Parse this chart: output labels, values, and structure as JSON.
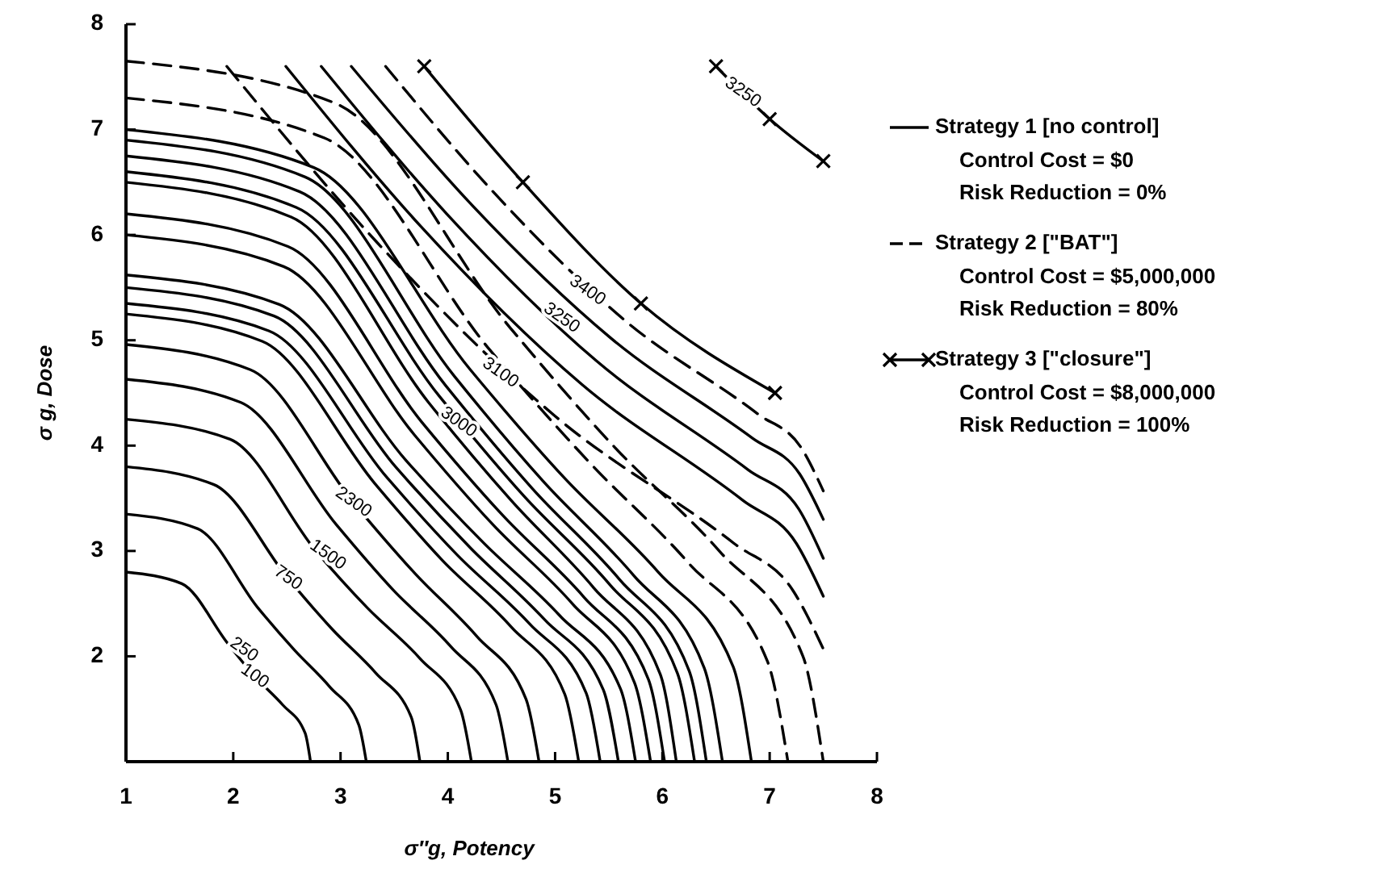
{
  "chart_data": {
    "type": "line",
    "xlabel": "σ″g,  Potency",
    "ylabel": "σ g,  Dose",
    "xlim": [
      1,
      8
    ],
    "ylim": [
      1,
      8
    ],
    "xticks": [
      1,
      2,
      3,
      4,
      5,
      6,
      7,
      8
    ],
    "yticks": [
      2,
      3,
      4,
      5,
      6,
      7,
      8
    ],
    "grid": false,
    "legend": "right",
    "series": [
      {
        "name": "Strategy 1 [no control]",
        "color": "#000000",
        "line_style": "solid",
        "x": [
          1,
          1.52,
          1.95,
          2.2,
          2.46,
          2.67,
          2.72
        ],
        "values": [
          2.8,
          2.69,
          2.12,
          1.81,
          1.54,
          1.27,
          1.0
        ]
      },
      {
        "color": "#000000",
        "line_style": "solid",
        "x": [
          1,
          1.67,
          2.23,
          2.57,
          2.9,
          3.17,
          3.24
        ],
        "values": [
          3.35,
          3.21,
          2.46,
          2.06,
          1.71,
          1.35,
          1.0
        ]
      },
      {
        "color": "#000000",
        "line_style": "solid",
        "x": [
          1,
          1.82,
          2.51,
          2.92,
          3.33,
          3.66,
          3.74
        ],
        "values": [
          3.8,
          3.63,
          2.74,
          2.26,
          1.84,
          1.42,
          1.0
        ]
      },
      {
        "color": "#000000",
        "line_style": "solid",
        "x": [
          1,
          1.97,
          2.77,
          3.25,
          3.74,
          4.12,
          4.22
        ],
        "values": [
          4.25,
          4.06,
          3.0,
          2.46,
          1.98,
          1.49,
          1.0
        ]
      },
      {
        "color": "#000000",
        "line_style": "solid",
        "x": [
          1,
          2.07,
          2.96,
          3.49,
          4.03,
          4.45,
          4.56
        ],
        "values": [
          4.63,
          4.41,
          3.25,
          2.63,
          2.09,
          1.54,
          1.0
        ]
      },
      {
        "color": "#000000",
        "line_style": "solid",
        "x": [
          1,
          2.16,
          3.12,
          3.7,
          4.27,
          4.73,
          4.85
        ],
        "values": [
          4.96,
          4.72,
          3.46,
          2.78,
          2.19,
          1.59,
          1.0
        ]
      },
      {
        "color": "#000000",
        "line_style": "solid",
        "x": [
          1,
          2.27,
          3.32,
          3.95,
          4.59,
          5.09,
          5.22
        ],
        "values": [
          5.25,
          4.99,
          3.64,
          2.91,
          2.28,
          1.64,
          1.0
        ]
      },
      {
        "color": "#000000",
        "line_style": "solid",
        "x": [
          1,
          2.33,
          3.43,
          4.09,
          4.76,
          5.29,
          5.42
        ],
        "values": [
          5.35,
          5.09,
          3.7,
          2.96,
          2.31,
          1.65,
          1.0
        ]
      },
      {
        "color": "#000000",
        "line_style": "solid",
        "x": [
          1,
          2.38,
          3.52,
          4.21,
          4.9,
          5.45,
          5.59
        ],
        "values": [
          5.5,
          5.23,
          3.79,
          3.03,
          2.35,
          1.68,
          1.0
        ]
      },
      {
        "color": "#000000",
        "line_style": "solid",
        "x": [
          1,
          2.43,
          3.61,
          4.33,
          5.04,
          5.61,
          5.75
        ],
        "values": [
          5.62,
          5.34,
          3.86,
          3.08,
          2.39,
          1.69,
          1.0
        ]
      },
      {
        "color": "#000000",
        "line_style": "solid",
        "x": [
          1,
          2.47,
          3.69,
          4.42,
          5.16,
          5.74,
          5.89
        ],
        "values": [
          6.0,
          5.7,
          4.1,
          3.25,
          2.5,
          1.75,
          1.0
        ]
      },
      {
        "color": "#000000",
        "line_style": "solid",
        "x": [
          1,
          2.51,
          3.76,
          4.51,
          5.27,
          5.87,
          6.02
        ],
        "values": [
          6.2,
          5.89,
          4.22,
          3.34,
          2.56,
          1.78,
          1.0
        ]
      },
      {
        "color": "#000000",
        "line_style": "solid",
        "x": [
          1,
          2.54,
          3.82,
          4.59,
          5.36,
          5.98,
          6.13
        ],
        "values": [
          6.5,
          6.17,
          4.41,
          3.48,
          2.65,
          1.83,
          1.0
        ]
      },
      {
        "color": "#000000",
        "line_style": "solid",
        "x": [
          1,
          2.59,
          3.92,
          4.71,
          5.51,
          6.14,
          6.3
        ],
        "values": [
          6.6,
          6.26,
          4.47,
          3.52,
          2.68,
          1.84,
          1.0
        ]
      },
      {
        "color": "#000000",
        "line_style": "solid",
        "x": [
          1,
          2.62,
          3.98,
          4.79,
          5.6,
          6.25,
          6.41
        ],
        "values": [
          6.75,
          6.41,
          4.57,
          3.59,
          2.73,
          1.86,
          1.0
        ]
      },
      {
        "color": "#000000",
        "line_style": "solid",
        "x": [
          1,
          2.67,
          4.06,
          4.89,
          5.73,
          6.39,
          6.56
        ],
        "values": [
          6.9,
          6.55,
          4.66,
          3.66,
          2.77,
          1.89,
          1.0
        ]
      },
      {
        "color": "#000000",
        "line_style": "solid",
        "x": [
          1,
          2.75,
          4.21,
          5.08,
          5.96,
          6.66,
          6.83
        ],
        "values": [
          7.0,
          6.64,
          4.72,
          3.7,
          2.8,
          1.9,
          1.0
        ]
      },
      {
        "name": "Strategy 2 [\"BAT\"]",
        "color": "#000000",
        "line_style": "dashed",
        "x": [
          1,
          2.85,
          4.39,
          5.32,
          6.24,
          6.98,
          7.17
        ],
        "values": [
          7.3,
          6.92,
          4.91,
          3.84,
          2.89,
          1.95,
          1.0
        ]
      },
      {
        "color": "#000000",
        "line_style": "dashed",
        "x": [
          1,
          2.95,
          4.58,
          5.55,
          6.53,
          7.31,
          7.5
        ],
        "values": [
          7.65,
          7.25,
          5.12,
          3.99,
          3.0,
          2.0,
          1.0
        ]
      },
      {
        "color": "#000000",
        "line_style": "dashed",
        "x": [
          1.94,
          3.33,
          5.0,
          6.67,
          7.22,
          7.5
        ],
        "values": [
          7.6,
          5.94,
          4.28,
          3.07,
          2.62,
          2.07
        ]
      },
      {
        "color": "#000000",
        "line_style": "solid",
        "x": [
          2.49,
          3.74,
          5.25,
          6.75,
          7.25,
          7.5
        ],
        "values": [
          7.6,
          6.09,
          4.58,
          3.48,
          3.07,
          2.57
        ]
      },
      {
        "color": "#000000",
        "line_style": "solid",
        "x": [
          2.82,
          3.99,
          5.39,
          6.8,
          7.27,
          7.5
        ],
        "values": [
          7.6,
          6.2,
          4.8,
          3.77,
          3.4,
          2.93
        ]
      },
      {
        "color": "#000000",
        "line_style": "solid",
        "x": [
          3.1,
          4.2,
          5.52,
          6.84,
          7.28,
          7.5
        ],
        "values": [
          7.6,
          6.31,
          5.02,
          4.07,
          3.73,
          3.3
        ]
      },
      {
        "color": "#000000",
        "line_style": "dashed",
        "x": [
          3.42,
          4.44,
          5.66,
          6.89,
          7.3,
          7.5
        ],
        "values": [
          7.6,
          6.39,
          5.18,
          4.3,
          3.97,
          3.57
        ]
      },
      {
        "name": "Strategy 3 [\"closure\"]",
        "color": "#000000",
        "line_style": "solid",
        "marker": "cross",
        "x": [
          3.78,
          4.7,
          5.8,
          7.05
        ],
        "values": [
          7.6,
          6.5,
          5.35,
          4.5
        ]
      },
      {
        "color": "#000000",
        "line_style": "solid",
        "marker": "cross",
        "x": [
          6.5,
          7.0,
          7.5
        ],
        "values": [
          7.6,
          7.1,
          6.7
        ]
      }
    ],
    "annotations": [
      "Control Cost = $0",
      "Risk Reduction = 0%",
      "Control Cost = $5,000,000",
      "Risk Reduction = 80%",
      "Control Cost = $8,000,000",
      "Risk Reduction = 100%",
      {
        "text": "100",
        "x": 2.2,
        "y": 1.81
      },
      {
        "text": "250",
        "x": 2.1,
        "y": 2.06
      },
      {
        "text": "750",
        "x": 2.51,
        "y": 2.74
      },
      {
        "text": "1500",
        "x": 2.88,
        "y": 2.96
      },
      {
        "text": "2300",
        "x": 3.12,
        "y": 3.46
      },
      {
        "text": "3000",
        "x": 4.1,
        "y": 4.22
      },
      {
        "text": "3100",
        "x": 4.49,
        "y": 4.69
      },
      {
        "text": "3250",
        "x": 5.06,
        "y": 5.21
      },
      {
        "text": "3400",
        "x": 5.3,
        "y": 5.47
      },
      {
        "text": "3250",
        "x": 6.75,
        "y": 7.35
      }
    ]
  }
}
